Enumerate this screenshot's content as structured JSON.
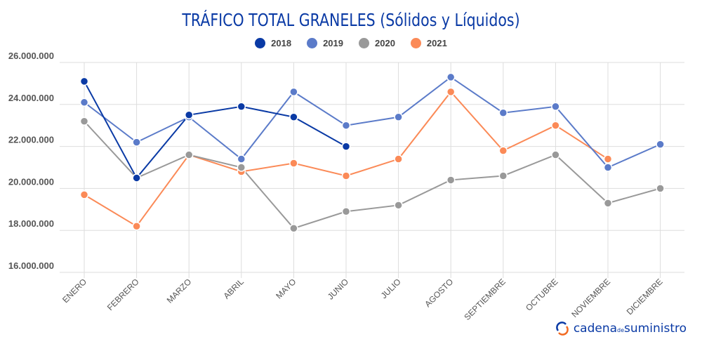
{
  "chart_data": {
    "type": "line",
    "title": "TRÁFICO TOTAL GRANELES (Sólidos y Líquidos)",
    "categories": [
      "ENERO",
      "FEBRERO",
      "MARZO",
      "ABRIL",
      "MAYO",
      "JUNIO",
      "JULIO",
      "AGOSTO",
      "SEPTIEMBRE",
      "OCTUBRE",
      "NOVIEMBRE",
      "DICIEMBRE"
    ],
    "ylim": [
      16000000,
      26000000
    ],
    "yticks": [
      16000000,
      18000000,
      20000000,
      22000000,
      24000000,
      26000000
    ],
    "ytick_labels": [
      "16.000.000",
      "18.000.000",
      "20.000.000",
      "22.000.000",
      "24.000.000",
      "26.000.000"
    ],
    "grid": true,
    "legend_position": "top",
    "series": [
      {
        "name": "2018",
        "color": "#0a3aa5",
        "values": [
          25100000,
          20500000,
          23500000,
          23900000,
          23400000,
          22000000,
          null,
          null,
          null,
          null,
          null,
          null
        ]
      },
      {
        "name": "2019",
        "color": "#5b7bc9",
        "values": [
          24100000,
          22200000,
          23400000,
          21400000,
          24600000,
          23000000,
          23400000,
          25300000,
          23600000,
          23900000,
          21000000,
          22100000
        ]
      },
      {
        "name": "2020",
        "color": "#999999",
        "values": [
          23200000,
          20500000,
          21600000,
          21000000,
          18100000,
          18900000,
          19200000,
          20400000,
          20600000,
          21600000,
          19300000,
          20000000
        ]
      },
      {
        "name": "2021",
        "color": "#fb8a57",
        "values": [
          19700000,
          18200000,
          21600000,
          20800000,
          21200000,
          20600000,
          21400000,
          24600000,
          21800000,
          23000000,
          21400000,
          null
        ]
      }
    ]
  },
  "logo": {
    "part1": "cadena",
    "part2": "de",
    "part3": "suministro"
  }
}
